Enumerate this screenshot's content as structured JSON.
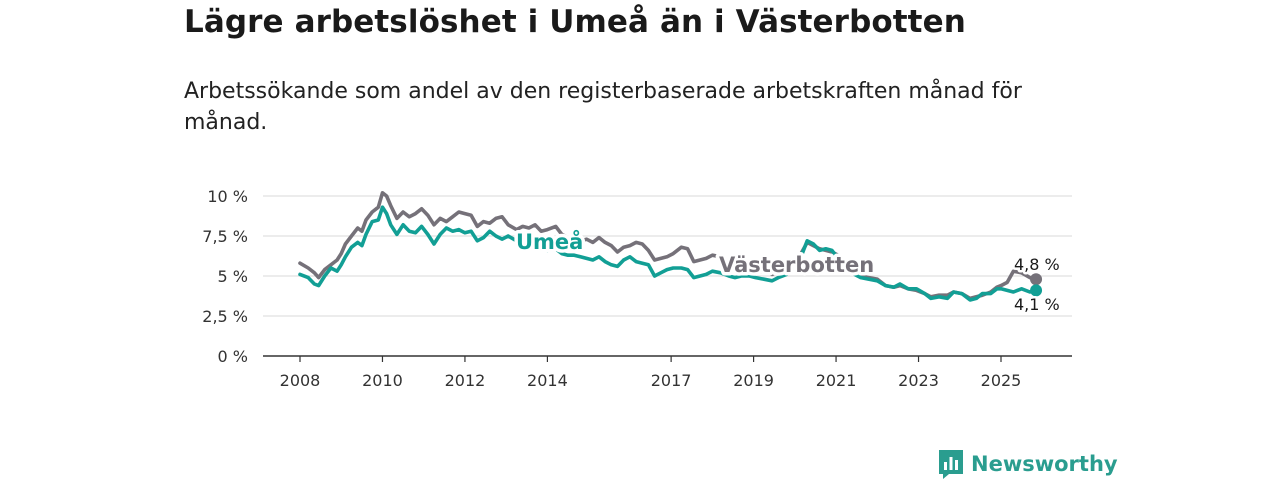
{
  "header": {
    "title": "Lägre arbetslöshet i Umeå än i Västerbotten",
    "subtitle": "Arbetssökande som andel av den registerbaserade arbetskraften månad för månad."
  },
  "brand": {
    "name": "Newsworthy",
    "icon": "newsworthy-logo-icon"
  },
  "chart_data": {
    "type": "line",
    "title": "Lägre arbetslöshet i Umeå än i Västerbotten",
    "subtitle": "Arbetssökande som andel av den registerbaserade arbetskraften månad för månad.",
    "xlabel": "",
    "ylabel": "",
    "xlim": [
      2007.0,
      2027.0
    ],
    "ylim": [
      0,
      10
    ],
    "y_ticks": [
      {
        "value": 0,
        "label": "0 %"
      },
      {
        "value": 2.5,
        "label": "2,5 %"
      },
      {
        "value": 5,
        "label": "5 %"
      },
      {
        "value": 7.5,
        "label": "7,5 %"
      },
      {
        "value": 10,
        "label": "10 %"
      }
    ],
    "x_ticks": [
      {
        "value": 2008,
        "label": "2008"
      },
      {
        "value": 2010,
        "label": "2010"
      },
      {
        "value": 2012,
        "label": "2012"
      },
      {
        "value": 2014,
        "label": "2014"
      },
      {
        "value": 2017,
        "label": "2017"
      },
      {
        "value": 2019,
        "label": "2019"
      },
      {
        "value": 2021,
        "label": "2021"
      },
      {
        "value": 2023,
        "label": "2023"
      },
      {
        "value": 2025,
        "label": "2025"
      }
    ],
    "grid": true,
    "series": [
      {
        "name": "Västerbotten",
        "label": "Västerbotten",
        "color": "#757179",
        "end_label": "4,8 %",
        "points": [
          [
            2008.0,
            5.8
          ],
          [
            2008.2,
            5.5
          ],
          [
            2008.35,
            5.2
          ],
          [
            2008.45,
            4.9
          ],
          [
            2008.6,
            5.4
          ],
          [
            2008.75,
            5.7
          ],
          [
            2008.9,
            6.0
          ],
          [
            2009.0,
            6.4
          ],
          [
            2009.1,
            7.0
          ],
          [
            2009.25,
            7.5
          ],
          [
            2009.4,
            8.0
          ],
          [
            2009.5,
            7.8
          ],
          [
            2009.6,
            8.5
          ],
          [
            2009.75,
            9.0
          ],
          [
            2009.9,
            9.3
          ],
          [
            2010.0,
            10.2
          ],
          [
            2010.1,
            10.0
          ],
          [
            2010.2,
            9.4
          ],
          [
            2010.35,
            8.6
          ],
          [
            2010.5,
            9.0
          ],
          [
            2010.65,
            8.7
          ],
          [
            2010.8,
            8.9
          ],
          [
            2010.95,
            9.2
          ],
          [
            2011.1,
            8.8
          ],
          [
            2011.25,
            8.2
          ],
          [
            2011.4,
            8.6
          ],
          [
            2011.55,
            8.4
          ],
          [
            2011.7,
            8.7
          ],
          [
            2011.85,
            9.0
          ],
          [
            2012.0,
            8.9
          ],
          [
            2012.15,
            8.8
          ],
          [
            2012.3,
            8.1
          ],
          [
            2012.45,
            8.4
          ],
          [
            2012.6,
            8.3
          ],
          [
            2012.75,
            8.6
          ],
          [
            2012.9,
            8.7
          ],
          [
            2013.05,
            8.2
          ],
          [
            2013.25,
            7.9
          ],
          [
            2013.4,
            8.1
          ],
          [
            2013.55,
            8.0
          ],
          [
            2013.7,
            8.2
          ],
          [
            2013.85,
            7.8
          ],
          [
            2014.0,
            7.9
          ],
          [
            2014.2,
            8.1
          ],
          [
            2014.35,
            7.6
          ],
          [
            2014.5,
            7.4
          ],
          [
            2014.65,
            7.5
          ],
          [
            2014.8,
            7.2
          ],
          [
            2014.95,
            7.3
          ],
          [
            2015.1,
            7.1
          ],
          [
            2015.25,
            7.4
          ],
          [
            2015.4,
            7.1
          ],
          [
            2015.55,
            6.9
          ],
          [
            2015.7,
            6.5
          ],
          [
            2015.85,
            6.8
          ],
          [
            2016.0,
            6.9
          ],
          [
            2016.15,
            7.1
          ],
          [
            2016.3,
            7.0
          ],
          [
            2016.45,
            6.6
          ],
          [
            2016.6,
            6.0
          ],
          [
            2016.75,
            6.1
          ],
          [
            2016.9,
            6.2
          ],
          [
            2017.05,
            6.4
          ],
          [
            2017.25,
            6.8
          ],
          [
            2017.4,
            6.7
          ],
          [
            2017.55,
            5.9
          ],
          [
            2017.7,
            6.0
          ],
          [
            2017.85,
            6.1
          ],
          [
            2018.0,
            6.3
          ],
          [
            2018.2,
            6.2
          ],
          [
            2018.4,
            5.6
          ],
          [
            2018.55,
            5.5
          ],
          [
            2018.7,
            5.6
          ],
          [
            2018.9,
            5.5
          ],
          [
            2019.05,
            5.2
          ],
          [
            2019.25,
            5.3
          ],
          [
            2019.45,
            5.1
          ],
          [
            2019.6,
            5.3
          ],
          [
            2019.8,
            5.4
          ],
          [
            2020.0,
            5.8
          ],
          [
            2020.15,
            6.4
          ],
          [
            2020.3,
            7.1
          ],
          [
            2020.45,
            6.9
          ],
          [
            2020.6,
            6.7
          ],
          [
            2020.75,
            6.6
          ],
          [
            2020.9,
            6.5
          ],
          [
            2021.05,
            6.3
          ],
          [
            2021.25,
            5.8
          ],
          [
            2021.45,
            5.3
          ],
          [
            2021.6,
            5.0
          ],
          [
            2021.8,
            4.9
          ],
          [
            2022.0,
            4.8
          ],
          [
            2022.2,
            4.4
          ],
          [
            2022.4,
            4.3
          ],
          [
            2022.55,
            4.4
          ],
          [
            2022.75,
            4.2
          ],
          [
            2022.95,
            4.1
          ],
          [
            2023.15,
            3.9
          ],
          [
            2023.3,
            3.7
          ],
          [
            2023.5,
            3.8
          ],
          [
            2023.7,
            3.8
          ],
          [
            2023.85,
            4.0
          ],
          [
            2024.05,
            3.9
          ],
          [
            2024.25,
            3.6
          ],
          [
            2024.4,
            3.7
          ],
          [
            2024.55,
            3.8
          ],
          [
            2024.75,
            4.0
          ],
          [
            2024.9,
            4.3
          ],
          [
            2025.0,
            4.4
          ],
          [
            2025.15,
            4.6
          ],
          [
            2025.3,
            5.3
          ],
          [
            2025.5,
            5.2
          ],
          [
            2025.7,
            4.9
          ],
          [
            2025.85,
            4.8
          ]
        ]
      },
      {
        "name": "Umeå",
        "label": "Umeå",
        "color": "#129f95",
        "end_label": "4,1 %",
        "points": [
          [
            2008.0,
            5.1
          ],
          [
            2008.2,
            4.9
          ],
          [
            2008.35,
            4.5
          ],
          [
            2008.45,
            4.4
          ],
          [
            2008.6,
            5.0
          ],
          [
            2008.75,
            5.5
          ],
          [
            2008.9,
            5.3
          ],
          [
            2009.0,
            5.7
          ],
          [
            2009.1,
            6.2
          ],
          [
            2009.25,
            6.8
          ],
          [
            2009.4,
            7.1
          ],
          [
            2009.5,
            6.9
          ],
          [
            2009.6,
            7.6
          ],
          [
            2009.75,
            8.4
          ],
          [
            2009.9,
            8.5
          ],
          [
            2010.0,
            9.3
          ],
          [
            2010.1,
            8.9
          ],
          [
            2010.2,
            8.2
          ],
          [
            2010.35,
            7.6
          ],
          [
            2010.5,
            8.2
          ],
          [
            2010.65,
            7.8
          ],
          [
            2010.8,
            7.7
          ],
          [
            2010.95,
            8.1
          ],
          [
            2011.1,
            7.6
          ],
          [
            2011.25,
            7.0
          ],
          [
            2011.4,
            7.6
          ],
          [
            2011.55,
            8.0
          ],
          [
            2011.7,
            7.8
          ],
          [
            2011.85,
            7.9
          ],
          [
            2012.0,
            7.7
          ],
          [
            2012.15,
            7.8
          ],
          [
            2012.3,
            7.2
          ],
          [
            2012.45,
            7.4
          ],
          [
            2012.6,
            7.8
          ],
          [
            2012.75,
            7.5
          ],
          [
            2012.9,
            7.3
          ],
          [
            2013.05,
            7.5
          ],
          [
            2013.25,
            7.2
          ],
          [
            2013.4,
            7.0
          ],
          [
            2013.55,
            6.9
          ],
          [
            2013.7,
            6.8
          ],
          [
            2013.85,
            6.7
          ],
          [
            2014.0,
            6.6
          ],
          [
            2014.2,
            6.7
          ],
          [
            2014.35,
            6.4
          ],
          [
            2014.5,
            6.3
          ],
          [
            2014.65,
            6.3
          ],
          [
            2014.8,
            6.2
          ],
          [
            2014.95,
            6.1
          ],
          [
            2015.1,
            6.0
          ],
          [
            2015.25,
            6.2
          ],
          [
            2015.4,
            5.9
          ],
          [
            2015.55,
            5.7
          ],
          [
            2015.7,
            5.6
          ],
          [
            2015.85,
            6.0
          ],
          [
            2016.0,
            6.2
          ],
          [
            2016.15,
            5.9
          ],
          [
            2016.3,
            5.8
          ],
          [
            2016.45,
            5.7
          ],
          [
            2016.6,
            5.0
          ],
          [
            2016.75,
            5.2
          ],
          [
            2016.9,
            5.4
          ],
          [
            2017.05,
            5.5
          ],
          [
            2017.25,
            5.5
          ],
          [
            2017.4,
            5.4
          ],
          [
            2017.55,
            4.9
          ],
          [
            2017.7,
            5.0
          ],
          [
            2017.85,
            5.1
          ],
          [
            2018.0,
            5.3
          ],
          [
            2018.2,
            5.2
          ],
          [
            2018.4,
            5.0
          ],
          [
            2018.55,
            4.9
          ],
          [
            2018.7,
            5.0
          ],
          [
            2018.9,
            5.0
          ],
          [
            2019.05,
            4.9
          ],
          [
            2019.25,
            4.8
          ],
          [
            2019.45,
            4.7
          ],
          [
            2019.6,
            4.9
          ],
          [
            2019.8,
            5.1
          ],
          [
            2020.0,
            5.5
          ],
          [
            2020.15,
            6.2
          ],
          [
            2020.3,
            7.2
          ],
          [
            2020.45,
            7.0
          ],
          [
            2020.6,
            6.6
          ],
          [
            2020.75,
            6.7
          ],
          [
            2020.9,
            6.6
          ],
          [
            2021.05,
            6.1
          ],
          [
            2021.25,
            5.6
          ],
          [
            2021.45,
            5.1
          ],
          [
            2021.6,
            4.9
          ],
          [
            2021.8,
            4.8
          ],
          [
            2022.0,
            4.7
          ],
          [
            2022.2,
            4.4
          ],
          [
            2022.4,
            4.3
          ],
          [
            2022.55,
            4.5
          ],
          [
            2022.75,
            4.2
          ],
          [
            2022.95,
            4.2
          ],
          [
            2023.15,
            3.9
          ],
          [
            2023.3,
            3.6
          ],
          [
            2023.5,
            3.7
          ],
          [
            2023.7,
            3.6
          ],
          [
            2023.85,
            4.0
          ],
          [
            2024.05,
            3.9
          ],
          [
            2024.25,
            3.5
          ],
          [
            2024.4,
            3.6
          ],
          [
            2024.55,
            3.9
          ],
          [
            2024.75,
            3.9
          ],
          [
            2024.9,
            4.2
          ],
          [
            2025.0,
            4.2
          ],
          [
            2025.15,
            4.1
          ],
          [
            2025.3,
            4.0
          ],
          [
            2025.5,
            4.2
          ],
          [
            2025.7,
            4.0
          ],
          [
            2025.85,
            4.1
          ]
        ]
      }
    ]
  }
}
